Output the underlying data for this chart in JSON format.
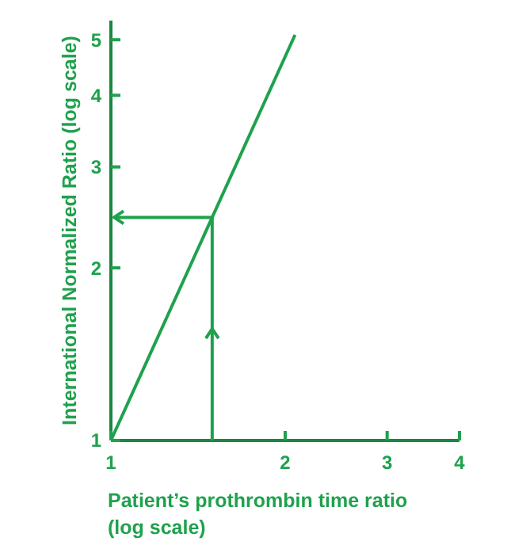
{
  "chart_data": {
    "type": "line",
    "log": "xy",
    "xlabel": "Patient’s prothrombin time ratio (log scale)",
    "ylabel": "International Normalized Ratio (log scale)",
    "xlim": [
      1,
      4
    ],
    "ylim": [
      1,
      5.4
    ],
    "xticks": [
      1,
      2,
      3,
      4
    ],
    "yticks": [
      1,
      2,
      3,
      4,
      5
    ],
    "grid": false,
    "marker": "none",
    "line_style": "solid",
    "series": [
      {
        "color": "#1fa14d",
        "x": [
          1,
          2.08
        ],
        "values": [
          1,
          5.1
        ]
      }
    ]
  }
}
